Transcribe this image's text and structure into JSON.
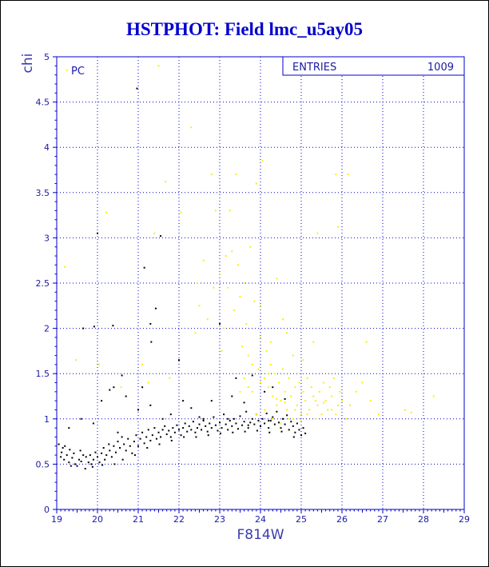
{
  "chart_data": {
    "type": "scatter",
    "title": "HSTPHOT: Field lmc_u5ay05",
    "xlabel": "F814W",
    "ylabel": "chi",
    "xlim": [
      19,
      29
    ],
    "ylim": [
      0,
      5
    ],
    "xticks": [
      "19",
      "20",
      "21",
      "22",
      "23",
      "24",
      "25",
      "26",
      "27",
      "28",
      "29"
    ],
    "yticks": [
      "0",
      "0.5",
      "1",
      "1.5",
      "2",
      "2.5",
      "3",
      "3.5",
      "4",
      "4.5",
      "5"
    ],
    "grid": true,
    "corner_label": "PC",
    "stats_box": {
      "label": "ENTRIES",
      "value": "1009"
    },
    "colors": {
      "axis": "#0000cc",
      "grid": "#0000cc",
      "black_series": "#000000",
      "yellow_series": "#ffee00"
    },
    "series": [
      {
        "color": "black",
        "points": [
          [
            19.05,
            0.72
          ],
          [
            19.1,
            0.58
          ],
          [
            19.12,
            0.63
          ],
          [
            19.18,
            0.55
          ],
          [
            19.2,
            0.7
          ],
          [
            19.25,
            0.6
          ],
          [
            19.3,
            0.52
          ],
          [
            19.32,
            0.66
          ],
          [
            19.38,
            0.57
          ],
          [
            19.42,
            0.62
          ],
          [
            19.45,
            0.5
          ],
          [
            19.5,
            0.48
          ],
          [
            19.55,
            0.55
          ],
          [
            19.6,
            0.53
          ],
          [
            19.65,
            0.6
          ],
          [
            19.7,
            0.45
          ],
          [
            19.72,
            0.58
          ],
          [
            19.78,
            0.52
          ],
          [
            19.82,
            0.6
          ],
          [
            19.85,
            0.5
          ],
          [
            19.9,
            0.55
          ],
          [
            19.95,
            0.63
          ],
          [
            20.0,
            0.58
          ],
          [
            20.05,
            0.52
          ],
          [
            20.1,
            0.62
          ],
          [
            20.15,
            0.68
          ],
          [
            20.18,
            0.55
          ],
          [
            20.22,
            0.6
          ],
          [
            20.28,
            0.72
          ],
          [
            20.3,
            0.65
          ],
          [
            20.35,
            0.58
          ],
          [
            20.4,
            0.7
          ],
          [
            20.45,
            0.63
          ],
          [
            20.5,
            0.75
          ],
          [
            20.55,
            0.68
          ],
          [
            20.6,
            0.8
          ],
          [
            20.65,
            0.72
          ],
          [
            20.7,
            0.65
          ],
          [
            20.75,
            0.78
          ],
          [
            20.8,
            0.7
          ],
          [
            20.85,
            0.62
          ],
          [
            20.9,
            0.75
          ],
          [
            20.95,
            0.82
          ],
          [
            21.0,
            0.7
          ],
          [
            21.05,
            0.78
          ],
          [
            21.1,
            0.85
          ],
          [
            21.15,
            0.73
          ],
          [
            21.2,
            0.8
          ],
          [
            21.25,
            0.88
          ],
          [
            21.3,
            0.76
          ],
          [
            21.35,
            0.82
          ],
          [
            21.4,
            0.9
          ],
          [
            21.45,
            0.78
          ],
          [
            21.5,
            0.85
          ],
          [
            21.55,
            0.8
          ],
          [
            21.6,
            0.88
          ],
          [
            21.65,
            0.92
          ],
          [
            21.7,
            0.83
          ],
          [
            21.75,
            0.87
          ],
          [
            21.8,
            0.8
          ],
          [
            21.85,
            0.9
          ],
          [
            21.9,
            0.85
          ],
          [
            21.95,
            0.93
          ],
          [
            22.0,
            0.88
          ],
          [
            22.05,
            0.82
          ],
          [
            22.1,
            0.9
          ],
          [
            22.15,
            0.95
          ],
          [
            22.2,
            0.86
          ],
          [
            22.25,
            0.92
          ],
          [
            22.3,
            0.88
          ],
          [
            22.35,
            0.97
          ],
          [
            22.4,
            0.85
          ],
          [
            22.45,
            0.9
          ],
          [
            22.5,
            0.94
          ],
          [
            22.55,
            0.88
          ],
          [
            22.6,
            1.0
          ],
          [
            22.65,
            0.92
          ],
          [
            22.7,
            0.86
          ],
          [
            22.75,
            0.95
          ],
          [
            22.8,
            0.9
          ],
          [
            22.85,
            1.02
          ],
          [
            22.9,
            0.93
          ],
          [
            22.95,
            0.87
          ],
          [
            23.0,
            0.96
          ],
          [
            23.05,
            0.9
          ],
          [
            23.1,
            1.05
          ],
          [
            23.15,
            0.94
          ],
          [
            23.2,
            0.88
          ],
          [
            23.25,
            0.98
          ],
          [
            23.3,
            0.92
          ],
          [
            23.35,
            1.0
          ],
          [
            23.4,
            0.95
          ],
          [
            23.45,
            0.89
          ],
          [
            23.5,
            1.03
          ],
          [
            23.55,
            0.93
          ],
          [
            23.6,
            0.97
          ],
          [
            23.65,
            1.08
          ],
          [
            23.7,
            0.9
          ],
          [
            23.75,
            0.96
          ],
          [
            23.8,
            1.0
          ],
          [
            23.85,
            0.94
          ],
          [
            23.9,
            1.05
          ],
          [
            23.95,
            0.98
          ],
          [
            24.0,
            0.92
          ],
          [
            24.05,
            1.0
          ],
          [
            24.1,
            0.95
          ],
          [
            24.15,
            1.06
          ],
          [
            24.2,
            0.9
          ],
          [
            24.25,
            0.98
          ],
          [
            24.3,
            1.02
          ],
          [
            24.35,
            0.94
          ],
          [
            24.4,
            1.08
          ],
          [
            24.45,
            0.96
          ],
          [
            24.5,
            0.9
          ],
          [
            24.55,
            1.0
          ],
          [
            24.6,
            0.94
          ],
          [
            24.65,
            1.04
          ],
          [
            24.7,
            0.88
          ],
          [
            24.75,
            0.97
          ],
          [
            24.8,
            0.92
          ],
          [
            24.85,
            0.85
          ],
          [
            24.9,
            0.95
          ],
          [
            24.95,
            0.88
          ],
          [
            25.0,
            0.82
          ],
          [
            25.05,
            0.9
          ],
          [
            25.1,
            0.84
          ],
          [
            19.15,
            0.68
          ],
          [
            19.35,
            0.48
          ],
          [
            19.58,
            0.65
          ],
          [
            19.88,
            0.47
          ],
          [
            20.12,
            0.49
          ],
          [
            20.42,
            0.5
          ],
          [
            20.62,
            0.55
          ],
          [
            20.92,
            0.6
          ],
          [
            21.22,
            0.68
          ],
          [
            21.52,
            0.72
          ],
          [
            21.82,
            0.76
          ],
          [
            22.12,
            0.8
          ],
          [
            22.42,
            0.8
          ],
          [
            22.72,
            0.82
          ],
          [
            23.02,
            0.84
          ],
          [
            23.32,
            0.85
          ],
          [
            23.62,
            0.86
          ],
          [
            23.92,
            0.87
          ],
          [
            24.22,
            0.85
          ],
          [
            24.52,
            0.86
          ],
          [
            24.82,
            0.8
          ],
          [
            21.0,
            1.1
          ],
          [
            21.3,
            1.15
          ],
          [
            21.8,
            1.05
          ],
          [
            22.3,
            1.12
          ],
          [
            22.8,
            1.2
          ],
          [
            23.3,
            1.25
          ],
          [
            23.6,
            1.18
          ],
          [
            24.1,
            1.3
          ],
          [
            24.6,
            1.22
          ],
          [
            20.7,
            1.25
          ],
          [
            20.4,
            1.35
          ],
          [
            20.1,
            1.2
          ],
          [
            19.9,
            0.95
          ],
          [
            19.6,
            1.0
          ],
          [
            19.3,
            0.9
          ],
          [
            21.6,
            1.0
          ],
          [
            22.1,
            1.2
          ],
          [
            23.4,
            1.45
          ],
          [
            23.8,
            1.48
          ],
          [
            24.3,
            1.35
          ],
          [
            20.6,
            1.48
          ],
          [
            20.3,
            1.32
          ],
          [
            21.1,
            1.35
          ],
          [
            22.5,
            1.02
          ],
          [
            19.65,
            2.0
          ],
          [
            19.92,
            2.02
          ],
          [
            20.38,
            2.03
          ],
          [
            20.97,
            4.65
          ],
          [
            21.15,
            2.67
          ],
          [
            21.32,
            1.85
          ],
          [
            21.43,
            2.22
          ],
          [
            21.55,
            3.02
          ],
          [
            20.0,
            3.05
          ],
          [
            21.3,
            2.05
          ],
          [
            23.0,
            2.05
          ],
          [
            22.0,
            1.65
          ],
          [
            20.5,
            0.85
          ],
          [
            24.2,
            0.98
          ],
          [
            23.2,
            1.0
          ],
          [
            22.6,
            0.98
          ],
          [
            23.7,
            0.93
          ]
        ]
      },
      {
        "color": "yellow",
        "points": [
          [
            19.2,
            2.68
          ],
          [
            19.25,
            4.85
          ],
          [
            19.47,
            1.65
          ],
          [
            20.04,
            1.6
          ],
          [
            20.22,
            3.28
          ],
          [
            20.58,
            1.35
          ],
          [
            21.1,
            1.6
          ],
          [
            21.25,
            1.4
          ],
          [
            21.4,
            3.05
          ],
          [
            21.5,
            4.9
          ],
          [
            21.67,
            3.62
          ],
          [
            21.77,
            1.45
          ],
          [
            22.05,
            3.28
          ],
          [
            22.3,
            4.22
          ],
          [
            22.45,
            2.5
          ],
          [
            22.5,
            2.25
          ],
          [
            22.6,
            2.75
          ],
          [
            22.7,
            2.1
          ],
          [
            22.8,
            3.7
          ],
          [
            22.9,
            3.3
          ],
          [
            23.0,
            2.6
          ],
          [
            23.1,
            2.0
          ],
          [
            23.15,
            2.8
          ],
          [
            23.2,
            2.45
          ],
          [
            23.3,
            2.85
          ],
          [
            23.35,
            2.2
          ],
          [
            23.4,
            3.7
          ],
          [
            23.45,
            2.7
          ],
          [
            23.5,
            2.35
          ],
          [
            23.55,
            1.8
          ],
          [
            23.6,
            2.5
          ],
          [
            23.65,
            2.05
          ],
          [
            23.7,
            1.7
          ],
          [
            23.75,
            2.9
          ],
          [
            23.8,
            1.6
          ],
          [
            23.85,
            2.3
          ],
          [
            23.9,
            3.6
          ],
          [
            23.95,
            1.55
          ],
          [
            24.0,
            1.9
          ],
          [
            24.05,
            3.85
          ],
          [
            24.1,
            1.45
          ],
          [
            24.15,
            1.75
          ],
          [
            24.2,
            1.35
          ],
          [
            24.25,
            1.6
          ],
          [
            24.3,
            1.25
          ],
          [
            24.35,
            1.5
          ],
          [
            24.4,
            1.15
          ],
          [
            24.45,
            1.4
          ],
          [
            24.5,
            1.2
          ],
          [
            24.55,
            1.55
          ],
          [
            24.6,
            1.3
          ],
          [
            24.65,
            1.1
          ],
          [
            24.7,
            1.45
          ],
          [
            24.75,
            1.25
          ],
          [
            24.8,
            1.0
          ],
          [
            24.85,
            1.35
          ],
          [
            24.9,
            1.15
          ],
          [
            24.95,
            1.4
          ],
          [
            25.0,
            1.05
          ],
          [
            25.05,
            1.3
          ],
          [
            25.1,
            1.2
          ],
          [
            25.15,
            1.45
          ],
          [
            25.2,
            1.1
          ],
          [
            25.25,
            1.35
          ],
          [
            25.3,
            1.25
          ],
          [
            25.35,
            1.0
          ],
          [
            25.4,
            1.15
          ],
          [
            25.45,
            1.3
          ],
          [
            25.5,
            1.05
          ],
          [
            25.55,
            1.4
          ],
          [
            25.6,
            1.2
          ],
          [
            25.65,
            1.1
          ],
          [
            25.7,
            1.35
          ],
          [
            25.75,
            1.25
          ],
          [
            25.8,
            1.45
          ],
          [
            25.85,
            1.05
          ],
          [
            25.9,
            1.15
          ],
          [
            25.95,
            1.3
          ],
          [
            26.0,
            1.2
          ],
          [
            26.1,
            1.0
          ],
          [
            26.2,
            1.15
          ],
          [
            26.35,
            1.3
          ],
          [
            26.5,
            1.4
          ],
          [
            26.6,
            1.85
          ],
          [
            26.7,
            1.2
          ],
          [
            26.9,
            1.05
          ],
          [
            27.55,
            1.1
          ],
          [
            27.7,
            1.07
          ],
          [
            28.25,
            1.25
          ],
          [
            25.85,
            3.7
          ],
          [
            26.15,
            3.7
          ],
          [
            25.9,
            3.12
          ],
          [
            25.4,
            3.05
          ],
          [
            24.4,
            2.55
          ],
          [
            24.55,
            2.1
          ],
          [
            24.0,
            2.25
          ],
          [
            23.25,
            3.3
          ],
          [
            22.85,
            2.45
          ],
          [
            23.05,
            1.75
          ],
          [
            22.4,
            1.95
          ],
          [
            24.25,
            1.85
          ],
          [
            24.65,
            1.95
          ],
          [
            25.3,
            1.85
          ],
          [
            24.8,
            1.7
          ],
          [
            25.05,
            1.65
          ],
          [
            24.3,
            1.0
          ],
          [
            24.5,
            0.95
          ],
          [
            24.7,
            1.0
          ],
          [
            25.0,
            0.98
          ],
          [
            23.9,
            1.05
          ],
          [
            24.1,
            1.1
          ],
          [
            24.4,
            1.22
          ],
          [
            24.6,
            1.18
          ],
          [
            24.85,
            1.1
          ],
          [
            25.15,
            1.05
          ],
          [
            25.35,
            1.2
          ],
          [
            25.55,
            1.18
          ],
          [
            25.75,
            1.1
          ],
          [
            23.5,
            1.3
          ],
          [
            23.7,
            1.35
          ],
          [
            23.6,
            1.45
          ],
          [
            23.8,
            1.3
          ],
          [
            24.0,
            1.4
          ],
          [
            24.2,
            1.5
          ]
        ]
      }
    ]
  }
}
